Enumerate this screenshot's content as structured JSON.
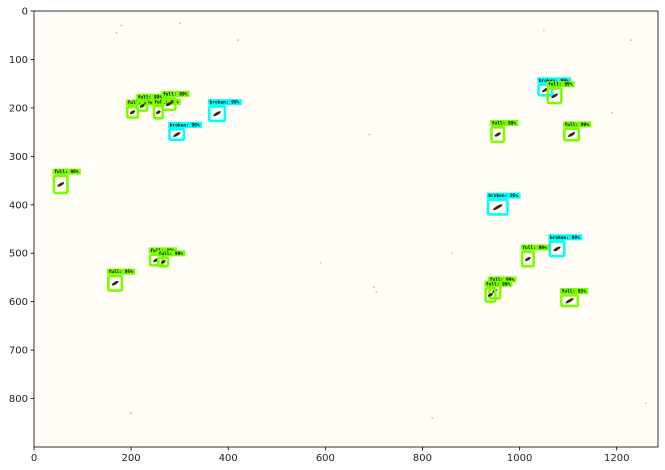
{
  "chart_data": {
    "type": "image-detections",
    "title": "",
    "xlabel": "",
    "ylabel": "",
    "xlim": [
      0,
      1285
    ],
    "ylim": [
      900,
      0
    ],
    "grid": false,
    "xticks": [
      0,
      200,
      400,
      600,
      800,
      1000,
      1200
    ],
    "yticks": [
      0,
      100,
      200,
      300,
      400,
      500,
      600,
      700,
      800
    ],
    "xtick_labels": [
      "0",
      "200",
      "400",
      "600",
      "800",
      "1000",
      "1200"
    ],
    "ytick_labels": [
      "0",
      "100",
      "200",
      "300",
      "400",
      "500",
      "600",
      "700",
      "800"
    ],
    "colors": {
      "full": "#7cfc00",
      "broken": "#00ffff",
      "background": "#fffdf6",
      "frame": "#000000"
    },
    "detections": [
      {
        "x": 55,
        "y": 358,
        "w": 28,
        "h": 35,
        "class": "full",
        "label": "full: 96%"
      },
      {
        "x": 167,
        "y": 562,
        "w": 28,
        "h": 30,
        "class": "full",
        "label": "full: 95%"
      },
      {
        "x": 203,
        "y": 209,
        "w": 22,
        "h": 22,
        "class": "full",
        "label": "full: 96%"
      },
      {
        "x": 223,
        "y": 196,
        "w": 20,
        "h": 20,
        "class": "full",
        "label": "full: 99%"
      },
      {
        "x": 256,
        "y": 209,
        "w": 18,
        "h": 25,
        "class": "full",
        "label": "full: 96%"
      },
      {
        "x": 278,
        "y": 192,
        "w": 26,
        "h": 24,
        "class": "full",
        "label": "full: 99%"
      },
      {
        "x": 252,
        "y": 514,
        "w": 26,
        "h": 22,
        "class": "full",
        "label": "full: 99%"
      },
      {
        "x": 266,
        "y": 518,
        "w": 20,
        "h": 18,
        "class": "full",
        "label": "full: 99%"
      },
      {
        "x": 294,
        "y": 255,
        "w": 30,
        "h": 22,
        "class": "broken",
        "label": "broken: 99%"
      },
      {
        "x": 377,
        "y": 212,
        "w": 32,
        "h": 30,
        "class": "broken",
        "label": "broken: 99%"
      },
      {
        "x": 955,
        "y": 405,
        "w": 40,
        "h": 30,
        "class": "broken",
        "label": "broken: 95%"
      },
      {
        "x": 955,
        "y": 255,
        "w": 26,
        "h": 30,
        "class": "full",
        "label": "full: 99%"
      },
      {
        "x": 1053,
        "y": 163,
        "w": 28,
        "h": 22,
        "class": "broken",
        "label": "broken: 99%"
      },
      {
        "x": 1072,
        "y": 175,
        "w": 28,
        "h": 30,
        "class": "full",
        "label": "full: 99%"
      },
      {
        "x": 1107,
        "y": 255,
        "w": 30,
        "h": 24,
        "class": "full",
        "label": "full: 99%"
      },
      {
        "x": 1077,
        "y": 491,
        "w": 30,
        "h": 30,
        "class": "broken",
        "label": "broken: 99%"
      },
      {
        "x": 1017,
        "y": 512,
        "w": 24,
        "h": 30,
        "class": "full",
        "label": "full: 99%"
      },
      {
        "x": 949,
        "y": 578,
        "w": 22,
        "h": 30,
        "class": "full",
        "label": "full: 99%"
      },
      {
        "x": 940,
        "y": 586,
        "w": 20,
        "h": 28,
        "class": "full",
        "label": "full: 99%"
      },
      {
        "x": 1103,
        "y": 598,
        "w": 34,
        "h": 22,
        "class": "full",
        "label": "full: 95%"
      }
    ]
  }
}
